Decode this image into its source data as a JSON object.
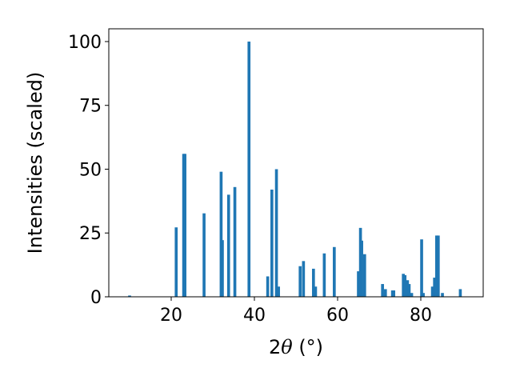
{
  "chart_data": {
    "type": "bar",
    "xlabel_main": "2",
    "xlabel_theta": "θ",
    "xlabel_unit": " (°)",
    "ylabel": "Intensities (scaled)",
    "xlim": [
      5,
      95
    ],
    "ylim": [
      0,
      105
    ],
    "xticks": [
      20,
      40,
      60,
      80
    ],
    "yticks": [
      0,
      25,
      50,
      75,
      100
    ],
    "bar_width": 0.7,
    "bar_color": "#1f77b4",
    "x": [
      10.0,
      21.2,
      23.0,
      23.3,
      27.9,
      32.0,
      32.3,
      33.8,
      35.3,
      38.7,
      43.2,
      44.2,
      45.3,
      45.8,
      51.0,
      51.8,
      54.2,
      54.7,
      56.8,
      59.2,
      65.0,
      65.5,
      65.8,
      66.5,
      70.8,
      71.5,
      73.2,
      73.5,
      75.8,
      76.2,
      76.8,
      77.2,
      77.8,
      80.2,
      80.6,
      82.8,
      83.3,
      83.8,
      84.2,
      85.2,
      89.5
    ],
    "values": [
      0.5,
      27.2,
      56.0,
      56.0,
      32.7,
      49.0,
      22.2,
      40.0,
      43.0,
      100.0,
      8.0,
      42.0,
      50.0,
      4.0,
      12.0,
      14.0,
      11.0,
      4.0,
      17.0,
      19.5,
      10.0,
      27.0,
      22.0,
      16.7,
      5.0,
      3.0,
      2.5,
      2.5,
      9.0,
      8.5,
      6.5,
      5.0,
      1.5,
      22.5,
      1.5,
      4.0,
      7.5,
      24.0,
      24.0,
      1.5,
      3.0
    ]
  }
}
